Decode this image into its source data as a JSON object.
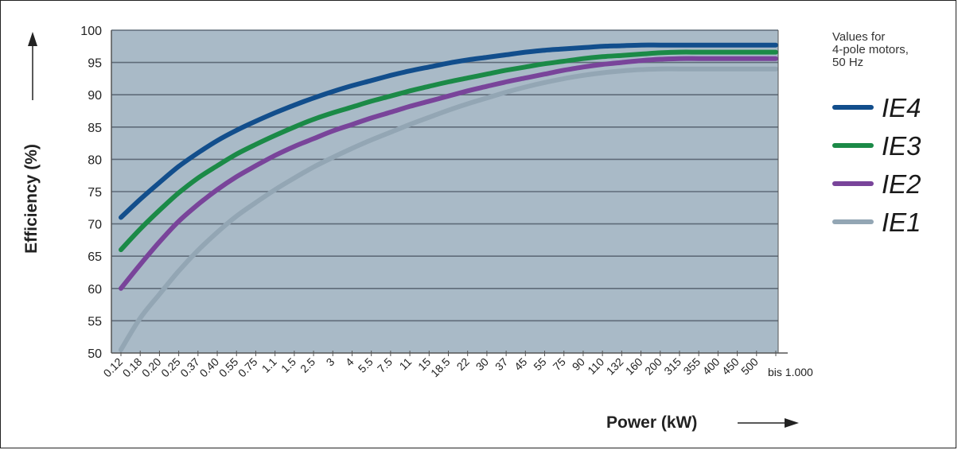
{
  "chart_data": {
    "type": "line",
    "ylabel": "Efficiency (%)",
    "xlabel": "Power (kW)",
    "note": [
      "Values for",
      "4-pole motors,",
      "50 Hz"
    ],
    "ylim": [
      50,
      100
    ],
    "yticks": [
      50,
      55,
      60,
      65,
      70,
      75,
      80,
      85,
      90,
      95,
      100
    ],
    "categories": [
      "0.12",
      "0.18",
      "0.20",
      "0.25",
      "0.37",
      "0.40",
      "0.55",
      "0.75",
      "1.1",
      "1.5",
      "2.5",
      "3",
      "4",
      "5.5",
      "7.5",
      "11",
      "15",
      "18.5",
      "22",
      "30",
      "37",
      "45",
      "55",
      "75",
      "90",
      "110",
      "132",
      "160",
      "200",
      "315",
      "355",
      "400",
      "450",
      "500",
      "bis 1.000"
    ],
    "grid": true,
    "legend_position": "right",
    "colors": {
      "plot_bg": "#a9bac7",
      "grid": "#5f6b78",
      "axis": "#555555"
    },
    "series": [
      {
        "name": "IE4",
        "color": "#124e8c",
        "values": [
          71,
          73.8,
          76.4,
          78.9,
          81,
          82.9,
          84.5,
          85.9,
          87.2,
          88.4,
          89.5,
          90.5,
          91.4,
          92.2,
          93,
          93.7,
          94.3,
          94.9,
          95.4,
          95.8,
          96.2,
          96.6,
          96.9,
          97.1,
          97.3,
          97.5,
          97.6,
          97.7,
          97.7,
          97.7,
          97.7,
          97.7,
          97.7,
          97.7,
          97.7
        ]
      },
      {
        "name": "IE3",
        "color": "#1b8a47",
        "values": [
          66,
          69.2,
          72.1,
          74.8,
          77.1,
          79,
          80.8,
          82.3,
          83.7,
          85,
          86.2,
          87.2,
          88.1,
          89,
          89.8,
          90.6,
          91.3,
          92,
          92.6,
          93.2,
          93.8,
          94.3,
          94.8,
          95.2,
          95.6,
          95.9,
          96.1,
          96.3,
          96.5,
          96.6,
          96.6,
          96.6,
          96.6,
          96.6,
          96.6
        ]
      },
      {
        "name": "IE2",
        "color": "#79449a",
        "values": [
          60,
          63.7,
          67.2,
          70.4,
          73,
          75.3,
          77.3,
          79,
          80.6,
          82,
          83.2,
          84.4,
          85.4,
          86.4,
          87.3,
          88.2,
          89,
          89.8,
          90.6,
          91.3,
          92,
          92.6,
          93.2,
          93.8,
          94.3,
          94.7,
          95,
          95.3,
          95.5,
          95.6,
          95.6,
          95.6,
          95.6,
          95.6,
          95.6
        ]
      },
      {
        "name": "IE1",
        "color": "#93a6b4",
        "values": [
          50.5,
          55.4,
          59.1,
          62.7,
          65.9,
          68.7,
          71.2,
          73.3,
          75.3,
          77.1,
          78.8,
          80.3,
          81.7,
          83,
          84.2,
          85.4,
          86.5,
          87.6,
          88.6,
          89.5,
          90.4,
          91.2,
          91.9,
          92.5,
          93,
          93.4,
          93.7,
          93.9,
          94,
          94,
          94,
          94,
          94,
          94,
          94
        ]
      }
    ]
  }
}
